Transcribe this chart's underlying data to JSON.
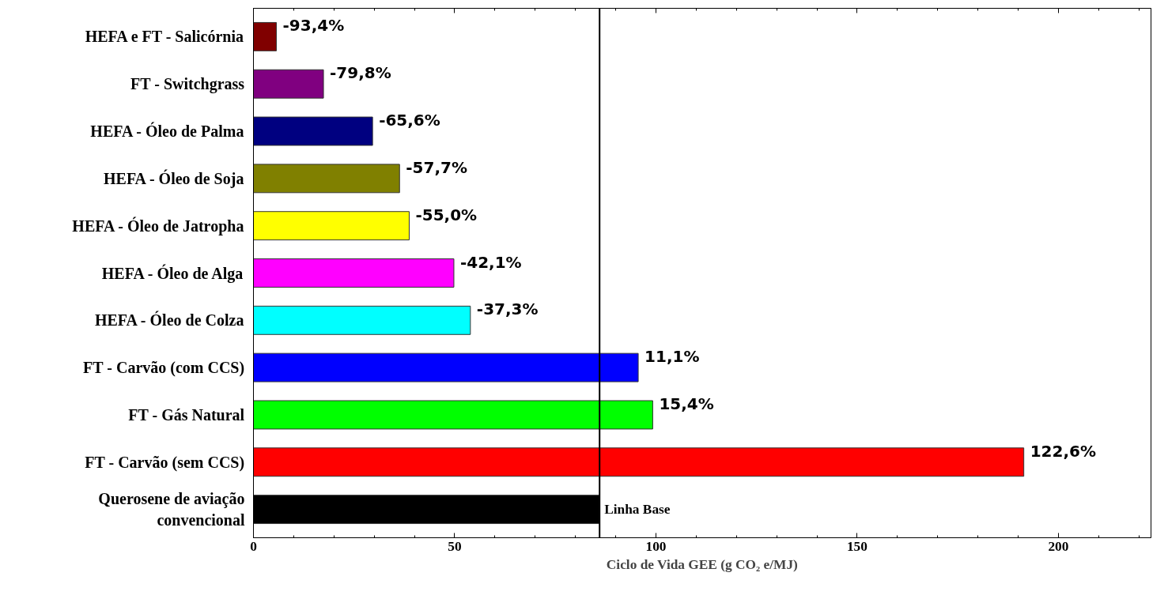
{
  "chart_data": {
    "type": "bar",
    "orientation": "horizontal",
    "xlabel": "Ciclo de Vida GEE (g CO₂ e/MJ)",
    "categories": [
      "HEFA e FT - Salicórnia",
      "FT - Switchgrass",
      "HEFA - Óleo de Palma",
      "HEFA - Óleo de Soja",
      "HEFA - Óleo de Jatropha",
      "HEFA - Óleo de Alga",
      "HEFA - Óleo de Colza",
      "FT - Carvão (com CCS)",
      "FT - Gás Natural",
      "FT - Carvão (sem CCS)",
      "Querosene de aviação convencional"
    ],
    "values": [
      5.7,
      17.4,
      29.6,
      36.3,
      38.7,
      49.8,
      53.9,
      95.6,
      99.2,
      191.4,
      86
    ],
    "colors": [
      "#800000",
      "#800080",
      "#000080",
      "#808000",
      "#ffff00",
      "#ff00ff",
      "#00ffff",
      "#0000ff",
      "#00ff00",
      "#ff0000",
      "#000000"
    ],
    "annotations": [
      {
        "text": "-93,4%",
        "x": 5.7,
        "y": "HEFA e FT - Salicórnia"
      },
      {
        "text": "-79,8%",
        "x": 17.4,
        "y": "FT - Switchgrass"
      },
      {
        "text": "-65,6%",
        "x": 29.6,
        "y": "HEFA - Óleo de Palma"
      },
      {
        "text": "-57,7%",
        "x": 36.3,
        "y": "HEFA - Óleo de Soja"
      },
      {
        "text": "-55,0%",
        "x": 38.7,
        "y": "HEFA - Óleo de Jatropha"
      },
      {
        "text": "-42,1%",
        "x": 49.8,
        "y": "HEFA - Óleo de Alga"
      },
      {
        "text": "-37,3%",
        "x": 53.9,
        "y": "HEFA - Óleo de Colza"
      },
      {
        "text": "11,1%",
        "x": 95.6,
        "y": "FT - Carvão (com CCS)"
      },
      {
        "text": "15,4%",
        "x": 99.2,
        "y": "FT - Gás Natural"
      },
      {
        "text": "122,6%",
        "x": 191.4,
        "y": "FT - Carvão (sem CCS)"
      }
    ],
    "xlim": [
      0,
      223
    ],
    "xticks": [
      0,
      50,
      100,
      150,
      200
    ],
    "ref_lines": [
      {
        "axis": "x",
        "value": 86,
        "label": "Linha Base",
        "color": "#000000"
      }
    ],
    "grid": false
  }
}
